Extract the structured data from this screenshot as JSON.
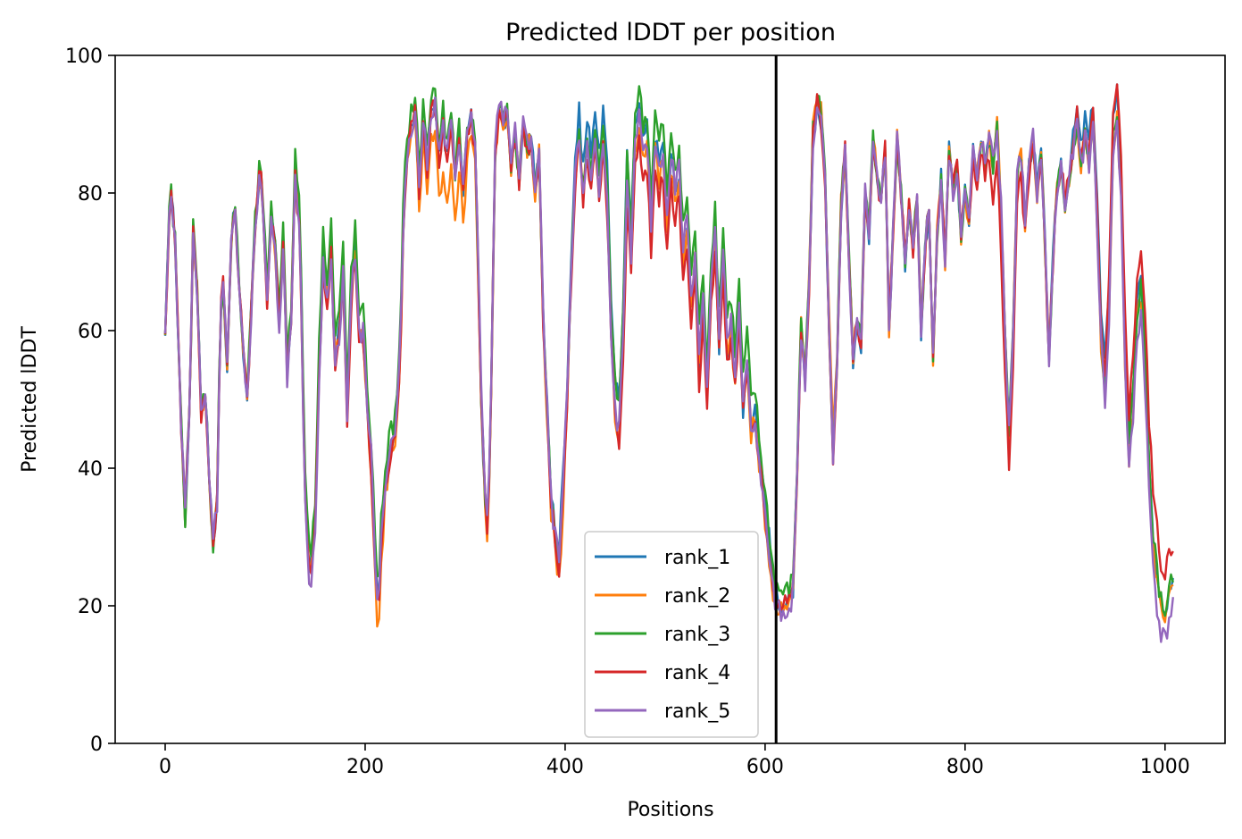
{
  "chart_data": {
    "type": "line",
    "title": "Predicted lDDT per position",
    "xlabel": "Positions",
    "ylabel": "Predicted lDDT",
    "xlim": [
      -50,
      1060
    ],
    "ylim": [
      0,
      100
    ],
    "xticks": [
      0,
      200,
      400,
      600,
      800,
      1000
    ],
    "yticks": [
      0,
      20,
      40,
      60,
      80,
      100
    ],
    "grid": false,
    "legend_position": "lower center",
    "vline": {
      "x": 611,
      "color": "#000000"
    },
    "series_colors": [
      "#1f77b4",
      "#ff7f0e",
      "#2ca02c",
      "#d62728",
      "#9467bd"
    ],
    "base_profile": [
      [
        0,
        58
      ],
      [
        5,
        82
      ],
      [
        10,
        73
      ],
      [
        15,
        50
      ],
      [
        20,
        33
      ],
      [
        25,
        52
      ],
      [
        28,
        75
      ],
      [
        32,
        66
      ],
      [
        36,
        48
      ],
      [
        40,
        52
      ],
      [
        45,
        36
      ],
      [
        48,
        29
      ],
      [
        52,
        35
      ],
      [
        55,
        62
      ],
      [
        58,
        67
      ],
      [
        62,
        55
      ],
      [
        66,
        73
      ],
      [
        70,
        78
      ],
      [
        74,
        66
      ],
      [
        78,
        57
      ],
      [
        82,
        50
      ],
      [
        86,
        63
      ],
      [
        90,
        75
      ],
      [
        95,
        84
      ],
      [
        98,
        78
      ],
      [
        102,
        64
      ],
      [
        106,
        76
      ],
      [
        110,
        72
      ],
      [
        114,
        62
      ],
      [
        118,
        73
      ],
      [
        122,
        55
      ],
      [
        126,
        62
      ],
      [
        130,
        83
      ],
      [
        135,
        74
      ],
      [
        140,
        36
      ],
      [
        145,
        24
      ],
      [
        150,
        33
      ],
      [
        155,
        60
      ],
      [
        158,
        71
      ],
      [
        162,
        65
      ],
      [
        166,
        73
      ],
      [
        170,
        56
      ],
      [
        174,
        60
      ],
      [
        178,
        69
      ],
      [
        182,
        48
      ],
      [
        186,
        66
      ],
      [
        190,
        72
      ],
      [
        194,
        60
      ],
      [
        198,
        60
      ],
      [
        202,
        50
      ],
      [
        206,
        42
      ],
      [
        210,
        27
      ],
      [
        213,
        20
      ],
      [
        216,
        30
      ],
      [
        220,
        38
      ],
      [
        225,
        43
      ],
      [
        230,
        45
      ],
      [
        235,
        56
      ],
      [
        238,
        75
      ],
      [
        241,
        84
      ],
      [
        245,
        89
      ],
      [
        250,
        92
      ],
      [
        254,
        81
      ],
      [
        258,
        91
      ],
      [
        262,
        84
      ],
      [
        266,
        92
      ],
      [
        270,
        93
      ],
      [
        274,
        85
      ],
      [
        278,
        90
      ],
      [
        282,
        85
      ],
      [
        286,
        90
      ],
      [
        290,
        82
      ],
      [
        294,
        88
      ],
      [
        298,
        80
      ],
      [
        302,
        88
      ],
      [
        306,
        91
      ],
      [
        310,
        86
      ],
      [
        313,
        70
      ],
      [
        316,
        50
      ],
      [
        320,
        35
      ],
      [
        323,
        30
      ],
      [
        326,
        52
      ],
      [
        330,
        85
      ],
      [
        334,
        93
      ],
      [
        338,
        90
      ],
      [
        342,
        92
      ],
      [
        346,
        84
      ],
      [
        350,
        88
      ],
      [
        354,
        82
      ],
      [
        358,
        90
      ],
      [
        362,
        86
      ],
      [
        366,
        88
      ],
      [
        370,
        80
      ],
      [
        374,
        86
      ],
      [
        378,
        62
      ],
      [
        382,
        48
      ],
      [
        386,
        35
      ],
      [
        390,
        30
      ],
      [
        394,
        26
      ],
      [
        398,
        38
      ],
      [
        402,
        50
      ],
      [
        406,
        68
      ],
      [
        410,
        82
      ],
      [
        414,
        88
      ],
      [
        418,
        80
      ],
      [
        422,
        86
      ],
      [
        426,
        82
      ],
      [
        430,
        88
      ],
      [
        434,
        80
      ],
      [
        438,
        87
      ],
      [
        442,
        78
      ],
      [
        446,
        60
      ],
      [
        450,
        48
      ],
      [
        454,
        45
      ],
      [
        458,
        58
      ],
      [
        462,
        80
      ],
      [
        466,
        70
      ],
      [
        470,
        86
      ],
      [
        474,
        90
      ],
      [
        478,
        84
      ],
      [
        482,
        86
      ],
      [
        486,
        74
      ],
      [
        490,
        86
      ],
      [
        494,
        82
      ],
      [
        498,
        85
      ],
      [
        502,
        74
      ],
      [
        506,
        84
      ],
      [
        510,
        79
      ],
      [
        514,
        82
      ],
      [
        518,
        70
      ],
      [
        522,
        75
      ],
      [
        526,
        63
      ],
      [
        530,
        70
      ],
      [
        534,
        55
      ],
      [
        538,
        64
      ],
      [
        542,
        50
      ],
      [
        546,
        66
      ],
      [
        550,
        73
      ],
      [
        554,
        58
      ],
      [
        558,
        70
      ],
      [
        562,
        57
      ],
      [
        566,
        60
      ],
      [
        570,
        52
      ],
      [
        574,
        62
      ],
      [
        578,
        48
      ],
      [
        582,
        55
      ],
      [
        586,
        45
      ],
      [
        590,
        47
      ],
      [
        594,
        40
      ],
      [
        598,
        35
      ],
      [
        602,
        30
      ],
      [
        606,
        24
      ],
      [
        610,
        20
      ],
      [
        614,
        19
      ],
      [
        620,
        19
      ],
      [
        625,
        20
      ],
      [
        628,
        22
      ],
      [
        632,
        38
      ],
      [
        636,
        60
      ],
      [
        640,
        52
      ],
      [
        644,
        66
      ],
      [
        648,
        88
      ],
      [
        652,
        93
      ],
      [
        656,
        90
      ],
      [
        660,
        82
      ],
      [
        664,
        60
      ],
      [
        668,
        42
      ],
      [
        672,
        56
      ],
      [
        676,
        78
      ],
      [
        680,
        86
      ],
      [
        684,
        70
      ],
      [
        688,
        56
      ],
      [
        692,
        62
      ],
      [
        696,
        58
      ],
      [
        700,
        80
      ],
      [
        704,
        74
      ],
      [
        708,
        88
      ],
      [
        712,
        82
      ],
      [
        716,
        78
      ],
      [
        720,
        86
      ],
      [
        724,
        60
      ],
      [
        728,
        74
      ],
      [
        732,
        88
      ],
      [
        736,
        80
      ],
      [
        740,
        70
      ],
      [
        744,
        78
      ],
      [
        748,
        72
      ],
      [
        752,
        80
      ],
      [
        756,
        60
      ],
      [
        760,
        72
      ],
      [
        764,
        78
      ],
      [
        768,
        56
      ],
      [
        772,
        74
      ],
      [
        776,
        82
      ],
      [
        780,
        70
      ],
      [
        784,
        86
      ],
      [
        788,
        80
      ],
      [
        792,
        84
      ],
      [
        796,
        74
      ],
      [
        800,
        80
      ],
      [
        804,
        76
      ],
      [
        808,
        86
      ],
      [
        812,
        82
      ],
      [
        816,
        88
      ],
      [
        820,
        84
      ],
      [
        824,
        88
      ],
      [
        828,
        84
      ],
      [
        832,
        90
      ],
      [
        836,
        78
      ],
      [
        840,
        60
      ],
      [
        844,
        45
      ],
      [
        848,
        60
      ],
      [
        852,
        82
      ],
      [
        856,
        86
      ],
      [
        860,
        76
      ],
      [
        864,
        84
      ],
      [
        868,
        88
      ],
      [
        872,
        80
      ],
      [
        876,
        86
      ],
      [
        880,
        72
      ],
      [
        884,
        56
      ],
      [
        888,
        70
      ],
      [
        892,
        80
      ],
      [
        896,
        84
      ],
      [
        900,
        78
      ],
      [
        904,
        82
      ],
      [
        908,
        86
      ],
      [
        912,
        90
      ],
      [
        916,
        84
      ],
      [
        920,
        88
      ],
      [
        924,
        84
      ],
      [
        928,
        90
      ],
      [
        932,
        76
      ],
      [
        936,
        58
      ],
      [
        940,
        50
      ],
      [
        944,
        62
      ],
      [
        948,
        86
      ],
      [
        952,
        90
      ],
      [
        956,
        80
      ],
      [
        960,
        55
      ],
      [
        964,
        40
      ],
      [
        968,
        48
      ],
      [
        972,
        60
      ],
      [
        976,
        64
      ],
      [
        980,
        54
      ],
      [
        984,
        38
      ],
      [
        988,
        28
      ],
      [
        992,
        22
      ],
      [
        996,
        18
      ],
      [
        1000,
        17
      ],
      [
        1004,
        20
      ],
      [
        1008,
        22
      ]
    ],
    "series": [
      {
        "name": "rank_1",
        "deviations": [
          [
            430,
            40,
            4
          ],
          [
            470,
            35,
            3
          ],
          [
            600,
            20,
            3
          ],
          [
            950,
            40,
            5
          ]
        ]
      },
      {
        "name": "rank_2",
        "deviations": [
          [
            213,
            10,
            -4
          ],
          [
            280,
            30,
            -6
          ],
          [
            396,
            10,
            -3
          ],
          [
            650,
            30,
            2
          ],
          [
            985,
            30,
            1
          ]
        ]
      },
      {
        "name": "rank_3",
        "deviations": [
          [
            160,
            60,
            3
          ],
          [
            260,
            50,
            2
          ],
          [
            470,
            40,
            4
          ],
          [
            560,
            80,
            5
          ],
          [
            980,
            40,
            3
          ]
        ]
      },
      {
        "name": "rank_4",
        "deviations": [
          [
            180,
            60,
            -2
          ],
          [
            520,
            80,
            -3
          ],
          [
            600,
            40,
            2
          ],
          [
            840,
            20,
            -6
          ],
          [
            985,
            50,
            9
          ]
        ]
      },
      {
        "name": "rank_5",
        "deviations": [
          [
            140,
            40,
            -2
          ],
          [
            330,
            40,
            1
          ],
          [
            520,
            60,
            2
          ],
          [
            995,
            30,
            -2
          ]
        ]
      }
    ]
  }
}
